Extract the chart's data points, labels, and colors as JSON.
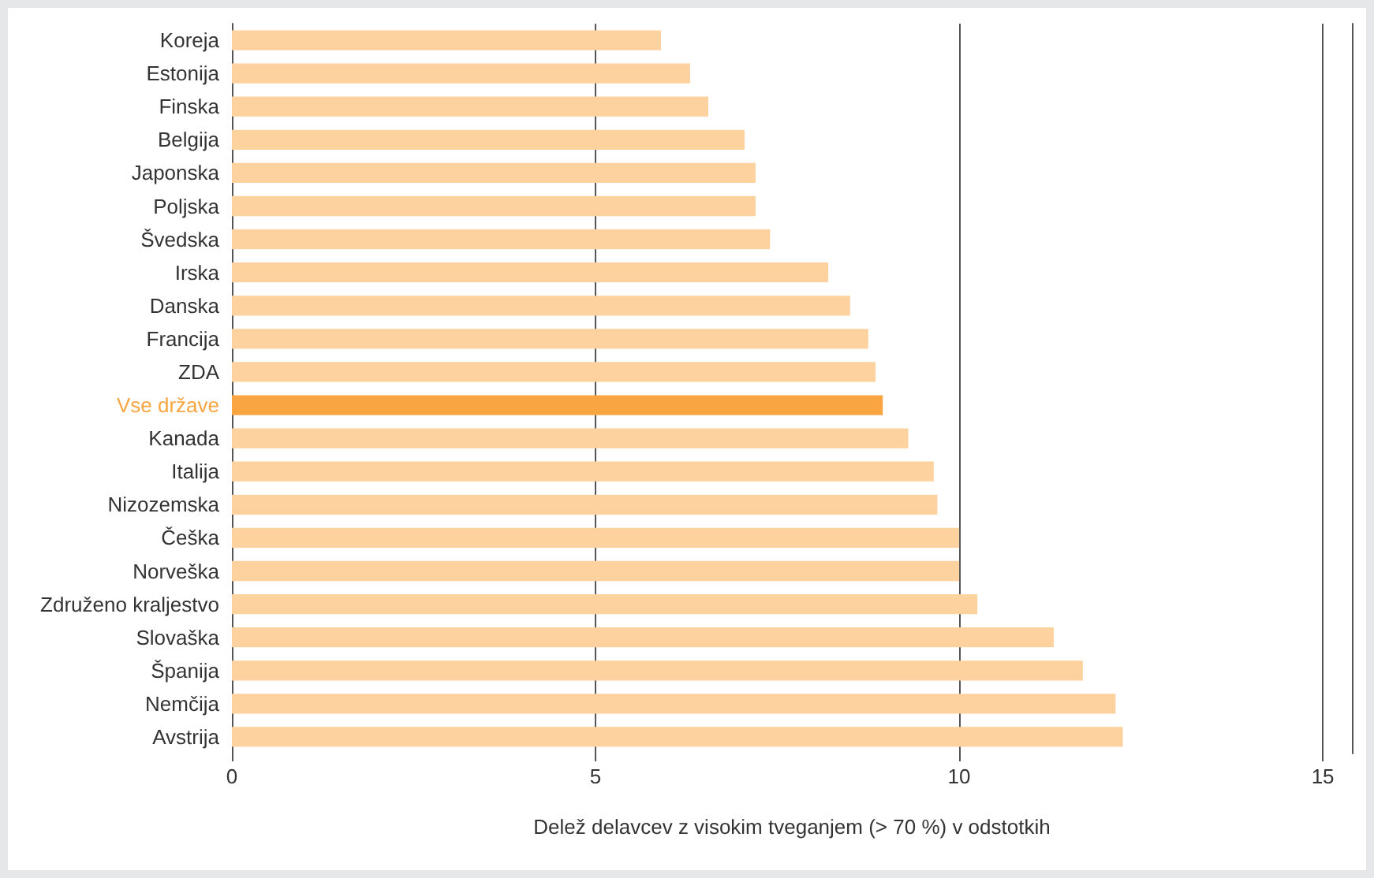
{
  "chart_data": {
    "type": "bar",
    "orientation": "horizontal",
    "xlabel": "Delež delavcev z visokim tveganjem (> 70 %) v odstotkih",
    "categories": [
      "Koreja",
      "Estonija",
      "Finska",
      "Belgija",
      "Japonska",
      "Poljska",
      "Švedska",
      "Irska",
      "Danska",
      "Francija",
      "ZDA",
      "Vse države",
      "Kanada",
      "Italija",
      "Nizozemska",
      "Češka",
      "Norveška",
      "Združeno kraljestvo",
      "Slovaška",
      "Španija",
      "Nemčija",
      "Avstrija"
    ],
    "values": [
      5.9,
      6.3,
      6.55,
      7.05,
      7.2,
      7.2,
      7.4,
      8.2,
      8.5,
      8.75,
      8.85,
      8.95,
      9.3,
      9.65,
      9.7,
      10.0,
      10.0,
      10.25,
      11.3,
      11.7,
      12.15,
      12.25
    ],
    "colors": [
      "#fdd29e",
      "#fdd29e",
      "#fdd29e",
      "#fdd29e",
      "#fdd29e",
      "#fdd29e",
      "#fdd29e",
      "#fdd29e",
      "#fdd29e",
      "#fdd29e",
      "#fdd29e",
      "#f9a541",
      "#fdd29e",
      "#fdd29e",
      "#fdd29e",
      "#fdd29e",
      "#fdd29e",
      "#fdd29e",
      "#fdd29e",
      "#fdd29e",
      "#fdd29e",
      "#fdd29e"
    ],
    "xlim": [
      0,
      15.4
    ],
    "xticks": [
      0,
      5,
      10,
      15
    ],
    "grid": "x"
  }
}
